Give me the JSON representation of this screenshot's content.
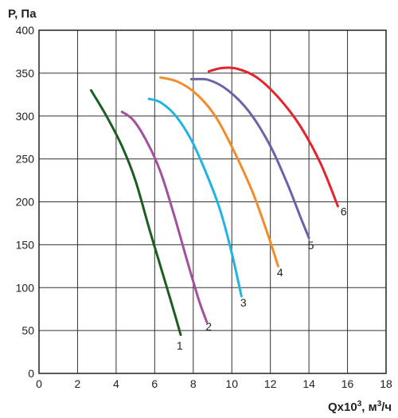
{
  "chart_data": {
    "type": "line",
    "ylabel": "P, Па",
    "xlabel_main": "Qx10",
    "xlabel_sup1": "3",
    "xlabel_mid": ", м",
    "xlabel_sup2": "3",
    "xlabel_end": "/ч",
    "xlim": [
      0,
      18
    ],
    "ylim": [
      0,
      400
    ],
    "xticks": [
      0,
      2,
      4,
      6,
      8,
      10,
      12,
      14,
      16,
      18
    ],
    "yticks": [
      0,
      50,
      100,
      150,
      200,
      250,
      300,
      350,
      400
    ],
    "grid": true,
    "series": [
      {
        "name": "1",
        "color": "#1b5e20",
        "points": [
          [
            2.7,
            330
          ],
          [
            3.5,
            300
          ],
          [
            4.3,
            265
          ],
          [
            5.0,
            225
          ],
          [
            5.7,
            170
          ],
          [
            6.3,
            125
          ],
          [
            6.9,
            80
          ],
          [
            7.35,
            45
          ]
        ],
        "label_at": [
          7.3,
          28
        ]
      },
      {
        "name": "2",
        "color": "#a4509e",
        "points": [
          [
            4.3,
            305
          ],
          [
            4.9,
            295
          ],
          [
            5.6,
            270
          ],
          [
            6.3,
            235
          ],
          [
            7.0,
            185
          ],
          [
            7.7,
            130
          ],
          [
            8.3,
            85
          ],
          [
            8.7,
            60
          ]
        ],
        "label_at": [
          8.8,
          50
        ]
      },
      {
        "name": "3",
        "color": "#21b3e3",
        "points": [
          [
            5.7,
            320
          ],
          [
            6.3,
            316
          ],
          [
            7.1,
            300
          ],
          [
            7.9,
            272
          ],
          [
            8.7,
            232
          ],
          [
            9.4,
            190
          ],
          [
            10.0,
            140
          ],
          [
            10.5,
            90
          ]
        ],
        "label_at": [
          10.6,
          78
        ]
      },
      {
        "name": "4",
        "color": "#f28c28",
        "points": [
          [
            6.3,
            345
          ],
          [
            7.2,
            340
          ],
          [
            8.2,
            325
          ],
          [
            9.2,
            298
          ],
          [
            10.2,
            255
          ],
          [
            11.1,
            210
          ],
          [
            11.9,
            160
          ],
          [
            12.4,
            125
          ]
        ],
        "label_at": [
          12.5,
          113
        ]
      },
      {
        "name": "5",
        "color": "#6b63a8",
        "points": [
          [
            7.9,
            343
          ],
          [
            8.8,
            342
          ],
          [
            9.8,
            330
          ],
          [
            10.9,
            305
          ],
          [
            12.0,
            265
          ],
          [
            12.9,
            220
          ],
          [
            13.6,
            180
          ],
          [
            14.0,
            158
          ]
        ],
        "label_at": [
          14.1,
          145
        ]
      },
      {
        "name": "6",
        "color": "#e3242b",
        "points": [
          [
            8.8,
            352
          ],
          [
            9.5,
            356
          ],
          [
            10.3,
            355
          ],
          [
            11.3,
            345
          ],
          [
            12.4,
            322
          ],
          [
            13.5,
            290
          ],
          [
            14.6,
            245
          ],
          [
            15.5,
            195
          ]
        ],
        "label_at": [
          15.8,
          184
        ]
      }
    ]
  }
}
